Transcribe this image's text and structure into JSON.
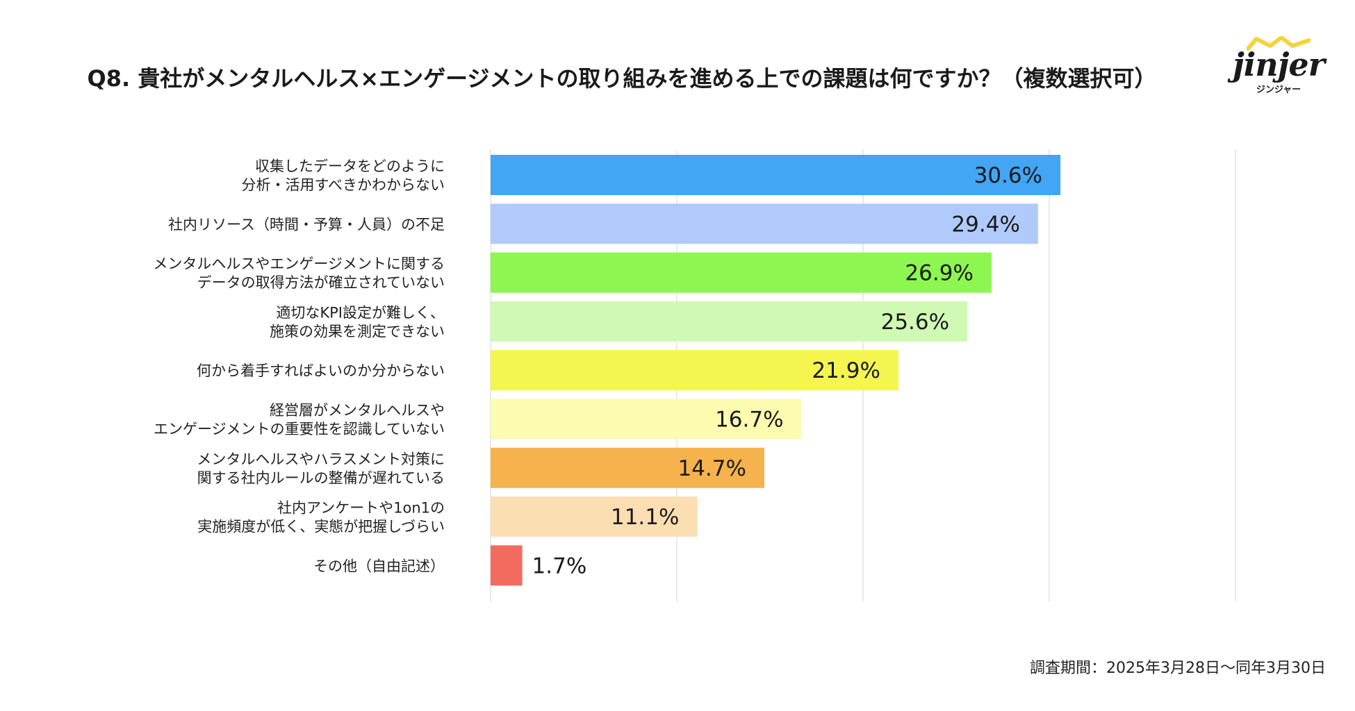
{
  "chart_data": {
    "type": "bar",
    "orientation": "horizontal",
    "title": "Q8. 貴社がメンタルヘルス×エンゲージメントの取り組みを進める上での課題は何ですか？（複数選択可）",
    "categories": [
      [
        "収集したデータをどのように",
        "分析・活用すべきかわからない"
      ],
      [
        "社内リソース（時間・予算・人員）の不足"
      ],
      [
        "メンタルヘルスやエンゲージメントに関する",
        "データの取得方法が確立されていない"
      ],
      [
        "適切なKPI設定が難しく、",
        "施策の効果を測定できない"
      ],
      [
        "何から着手すればよいのか分からない"
      ],
      [
        "経営層がメンタルヘルスや",
        "エンゲージメントの重要性を認識していない"
      ],
      [
        "メンタルヘルスやハラスメント対策に",
        "関する社内ルールの整備が遅れている"
      ],
      [
        "社内アンケートや1on1の",
        "実施頻度が低く、実態が把握しづらい"
      ],
      [
        "その他（自由記述）"
      ]
    ],
    "values": [
      30.6,
      29.4,
      26.9,
      25.6,
      21.9,
      16.7,
      14.7,
      11.1,
      1.7
    ],
    "value_labels": [
      "30.6%",
      "29.4%",
      "26.9%",
      "25.6%",
      "21.9%",
      "16.7%",
      "14.7%",
      "11.1%",
      "1.7%"
    ],
    "colors": [
      "#42a5f5",
      "#b0cbfb",
      "#8ef650",
      "#d0f9b3",
      "#f4f54f",
      "#fcfbb0",
      "#f5b24d",
      "#fbdeb2",
      "#f36b5f"
    ],
    "xlim": [
      0,
      40
    ],
    "gridlines": [
      0,
      10,
      20,
      30,
      40
    ],
    "grid": true,
    "legend": "none"
  },
  "logo": {
    "word": "jinjer",
    "sub": "ジンジャー"
  },
  "footnote": "調査期間：2025年3月28日〜同年3月30日"
}
